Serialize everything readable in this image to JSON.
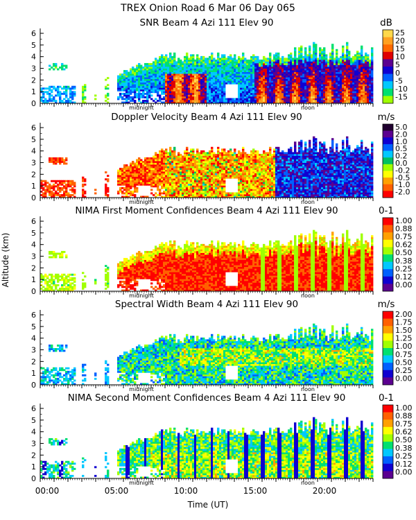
{
  "figure": {
    "title": "TREX Onion Road   6 Mar 06 Day 065",
    "ylabel": "Altitude (km)",
    "xlabel": "Time (UT)",
    "x_ticks": [
      "00:00",
      "05:00",
      "10:00",
      "15:00",
      "20:00"
    ],
    "marker_midnight": "midnight",
    "marker_noon": "noon"
  },
  "chart_data": [
    {
      "type": "heatmap",
      "title": "SNR Beam 4 Azi 111 Elev 90",
      "unit": "dB",
      "y_ticks": [
        "0",
        "1",
        "2",
        "3",
        "4",
        "5",
        "6"
      ],
      "ylim": [
        0,
        6.3
      ],
      "xlim": [
        "00:00",
        "24:00"
      ],
      "colorbar_labels": [
        "25",
        "20",
        "15",
        "10",
        "5",
        "0",
        "-5",
        "-10",
        "-15"
      ],
      "colorbar_colors": [
        "#ffd84a",
        "#ffa020",
        "#ff6a00",
        "#e00000",
        "#5b0090",
        "#1000d0",
        "#0060ff",
        "#00c8ff",
        "#00e070",
        "#a0ff00"
      ]
    },
    {
      "type": "heatmap",
      "title": "Doppler Velocity Beam 4 Azi 111 Elev 90",
      "unit": "m/s",
      "y_ticks": [
        "0",
        "1",
        "2",
        "3",
        "4",
        "5",
        "6"
      ],
      "ylim": [
        0,
        6.3
      ],
      "xlim": [
        "00:00",
        "24:00"
      ],
      "colorbar_labels": [
        "5.0",
        "2.0",
        "1.0",
        "0.5",
        "0.2",
        "0.0",
        "-0.2",
        "-0.5",
        "-1.0",
        "-2.0"
      ],
      "colorbar_colors": [
        "#200030",
        "#5b0090",
        "#1000d0",
        "#0060ff",
        "#00c8ff",
        "#00c060",
        "#a0ff00",
        "#ffff00",
        "#ffa000",
        "#ff6000",
        "#ff0000"
      ]
    },
    {
      "type": "heatmap",
      "title": "NIMA First Moment Confidences Beam 4 Azi 111 Elev 90",
      "unit": "0-1",
      "y_ticks": [
        "0",
        "1",
        "2",
        "3",
        "4",
        "5",
        "6"
      ],
      "ylim": [
        0,
        6.3
      ],
      "xlim": [
        "00:00",
        "24:00"
      ],
      "colorbar_labels": [
        "1.00",
        "0.88",
        "0.75",
        "0.62",
        "0.50",
        "0.38",
        "0.25",
        "0.12",
        "0.00"
      ],
      "colorbar_colors": [
        "#ff0000",
        "#ff6000",
        "#ffa000",
        "#ffff00",
        "#a0ff00",
        "#00e070",
        "#00c8ff",
        "#0060ff",
        "#1000d0",
        "#5b0090"
      ]
    },
    {
      "type": "heatmap",
      "title": "Spectral Width Beam 4 Azi 111 Elev 90",
      "unit": "m/s",
      "y_ticks": [
        "0",
        "1",
        "2",
        "3",
        "4",
        "5",
        "6"
      ],
      "ylim": [
        0,
        6.3
      ],
      "xlim": [
        "00:00",
        "24:00"
      ],
      "colorbar_labels": [
        "2.00",
        "1.75",
        "1.50",
        "1.25",
        "1.00",
        "0.75",
        "0.50",
        "0.25",
        "0.00"
      ],
      "colorbar_colors": [
        "#ff0000",
        "#ff6000",
        "#ffa000",
        "#ffff00",
        "#a0ff00",
        "#00e070",
        "#00c8ff",
        "#0060ff",
        "#1000d0",
        "#5b0090"
      ]
    },
    {
      "type": "heatmap",
      "title": "NIMA Second Moment Confidences Beam 4 Azi 111 Elev 90",
      "unit": "0-1",
      "y_ticks": [
        "0",
        "1",
        "2",
        "3",
        "4",
        "5",
        "6"
      ],
      "ylim": [
        0,
        6.3
      ],
      "xlim": [
        "00:00",
        "24:00"
      ],
      "colorbar_labels": [
        "1.00",
        "0.88",
        "0.75",
        "0.62",
        "0.50",
        "0.38",
        "0.25",
        "0.12",
        "0.00"
      ],
      "colorbar_colors": [
        "#ff0000",
        "#ff6000",
        "#ffa000",
        "#ffff00",
        "#a0ff00",
        "#00e070",
        "#00c8ff",
        "#0060ff",
        "#1000d0",
        "#5b0090"
      ]
    }
  ]
}
